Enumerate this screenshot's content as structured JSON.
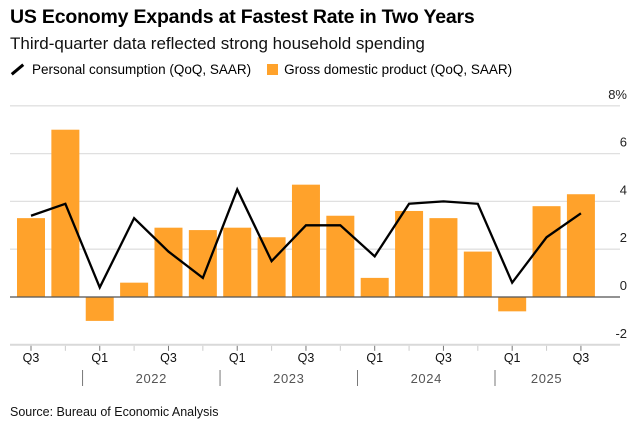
{
  "chart_data": {
    "type": "bar",
    "title": "US Economy Expands at Fastest Rate in Two Years",
    "subtitle": "Third-quarter data reflected strong household spending",
    "categories": [
      "2021 Q3",
      "2021 Q4",
      "2022 Q1",
      "2022 Q2",
      "2022 Q3",
      "2022 Q4",
      "2023 Q1",
      "2023 Q2",
      "2023 Q3",
      "2023 Q4",
      "2024 Q1",
      "2024 Q2",
      "2024 Q3",
      "2024 Q4",
      "2025 Q1",
      "2025 Q2",
      "2025 Q3"
    ],
    "series": [
      {
        "name": "Personal consumption (QoQ, SAAR)",
        "type": "line",
        "color": "#000000",
        "values": [
          3.4,
          3.9,
          0.4,
          3.3,
          1.9,
          0.8,
          4.5,
          1.5,
          3.0,
          3.0,
          1.7,
          3.9,
          4.0,
          3.9,
          0.6,
          2.5,
          3.5
        ]
      },
      {
        "name": "Gross domestic product (QoQ, SAAR)",
        "type": "bar",
        "color": "#ffa22b",
        "values": [
          3.3,
          7.0,
          -1.0,
          0.6,
          2.9,
          2.8,
          2.9,
          2.5,
          4.7,
          3.4,
          0.8,
          3.6,
          3.3,
          1.9,
          -0.6,
          3.8,
          4.3
        ]
      }
    ],
    "yticks": [
      {
        "v": 8,
        "label": "8%"
      },
      {
        "v": 6,
        "label": "6"
      },
      {
        "v": 4,
        "label": "4"
      },
      {
        "v": 2,
        "label": "2"
      },
      {
        "v": 0,
        "label": "0"
      },
      {
        "v": -2,
        "label": "-2"
      }
    ],
    "ylim": [
      -2,
      8
    ],
    "xtick_labels": [
      {
        "i": 0,
        "label": "Q3"
      },
      {
        "i": 2,
        "label": "Q1"
      },
      {
        "i": 4,
        "label": "Q3"
      },
      {
        "i": 6,
        "label": "Q1"
      },
      {
        "i": 8,
        "label": "Q3"
      },
      {
        "i": 10,
        "label": "Q1"
      },
      {
        "i": 12,
        "label": "Q3"
      },
      {
        "i": 14,
        "label": "Q1"
      },
      {
        "i": 16,
        "label": "Q3"
      }
    ],
    "years": [
      {
        "label": "2022",
        "start": 2,
        "end": 5
      },
      {
        "label": "2023",
        "start": 6,
        "end": 9
      },
      {
        "label": "2024",
        "start": 10,
        "end": 13
      },
      {
        "label": "2025",
        "start": 14,
        "end": 16
      }
    ],
    "legend": "top-left",
    "grid": true
  },
  "source": "Source: Bureau of Economic Analysis"
}
